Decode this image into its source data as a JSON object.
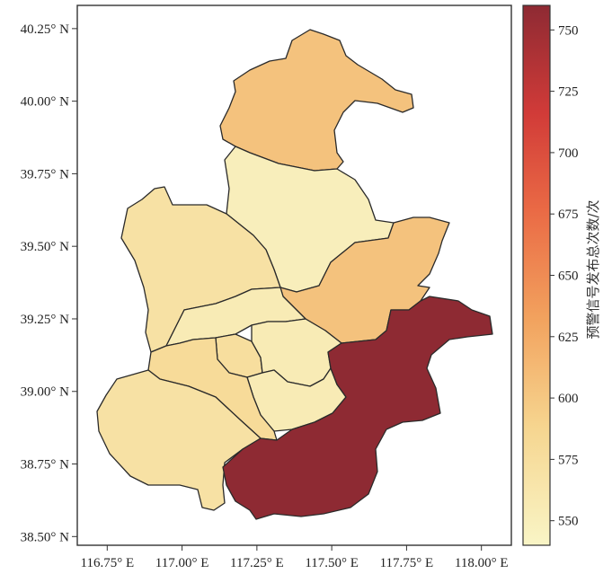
{
  "colorbar": {
    "label": "预警信号发布总次数/次",
    "min": 540,
    "max": 760,
    "ticks": [
      550,
      575,
      600,
      625,
      650,
      675,
      700,
      725,
      750
    ],
    "stops": [
      "#f9f5c6",
      "#f6d58f",
      "#f2a25e",
      "#ea6a45",
      "#d13b38",
      "#8e2a33"
    ]
  },
  "chart_data": {
    "type": "choropleth",
    "title": "",
    "x_axis": {
      "range": [
        116.65,
        118.1
      ],
      "ticks": [
        116.75,
        117.0,
        117.25,
        117.5,
        117.75,
        118.0
      ],
      "tick_labels": [
        "116.75° E",
        "117.00° E",
        "117.25° E",
        "117.50° E",
        "117.75° E",
        "118.00° E"
      ]
    },
    "y_axis": {
      "range": [
        38.47,
        40.33
      ],
      "ticks": [
        38.5,
        38.75,
        39.0,
        39.25,
        39.5,
        39.75,
        40.0,
        40.25
      ],
      "tick_labels": [
        "38.50° N",
        "38.75° N",
        "39.00° N",
        "39.25° N",
        "39.50° N",
        "39.75° N",
        "40.00° N",
        "40.25° N"
      ]
    },
    "regions": [
      {
        "id": "north",
        "value": 605
      },
      {
        "id": "north-middle",
        "value": 550
      },
      {
        "id": "west-upper",
        "value": 570
      },
      {
        "id": "east-middle",
        "value": 605
      },
      {
        "id": "central-band",
        "value": 555
      },
      {
        "id": "center-small-a",
        "value": 575
      },
      {
        "id": "center-small-b",
        "value": 555
      },
      {
        "id": "center-small-c",
        "value": 555
      },
      {
        "id": "southwest-inner",
        "value": 580
      },
      {
        "id": "southwest",
        "value": 570
      },
      {
        "id": "coastal",
        "value": 760
      }
    ]
  }
}
